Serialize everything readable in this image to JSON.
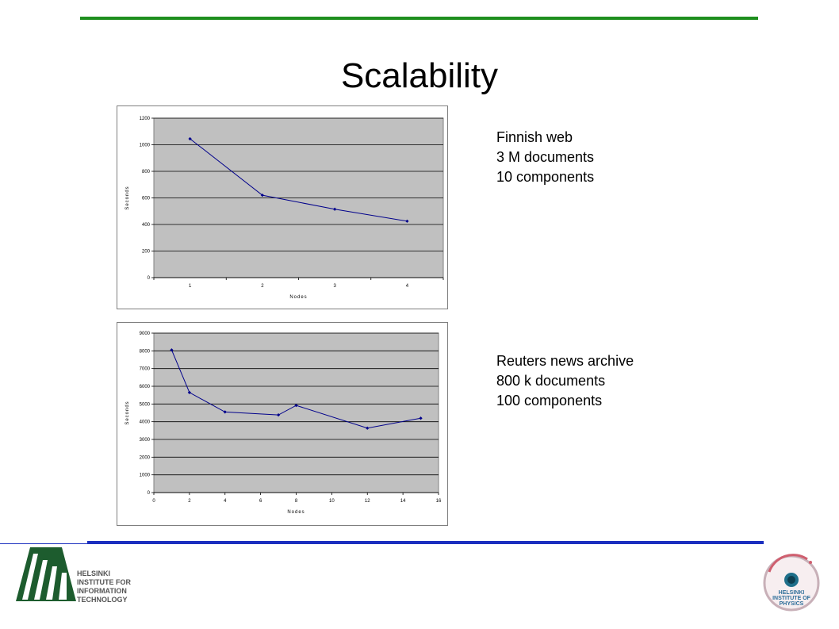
{
  "slide": {
    "title": "Scalability",
    "caption1": [
      "Finnish web",
      "3 M documents",
      "10 components"
    ],
    "caption2": [
      "Reuters news archive",
      "800 k documents",
      "100 components"
    ],
    "colors": {
      "top_rule": "#1e8f1e",
      "bottom_rule": "#1b2fbf",
      "plot_bg": "#c0c0c0",
      "series": "#00008b",
      "logo_green": "#1d5c2e"
    },
    "logos": [
      {
        "name": "hiit-logo",
        "text": [
          "HELSINKI",
          "INSTITUTE FOR",
          "INFORMATION",
          "TECHNOLOGY"
        ]
      },
      {
        "name": "hip-logo",
        "text": [
          "HELSINKI",
          "INSTITUTE OF",
          "PHYSICS"
        ]
      }
    ]
  },
  "chart_data": [
    {
      "type": "line",
      "xlabel": "Nodes",
      "ylabel": "Seconds",
      "x_kind": "category",
      "categories": [
        "1",
        "2",
        "3",
        "4"
      ],
      "y_ticks": [
        0,
        200,
        400,
        600,
        800,
        1000,
        1200
      ],
      "ylim": [
        0,
        1200
      ],
      "grid": true,
      "series": [
        {
          "values": [
            1045,
            620,
            515,
            425
          ]
        }
      ]
    },
    {
      "type": "line",
      "xlabel": "Nodes",
      "ylabel": "Seconds",
      "x_kind": "numeric",
      "x_ticks": [
        0,
        2,
        4,
        6,
        8,
        10,
        12,
        14,
        16
      ],
      "xlim": [
        0,
        16
      ],
      "y_ticks": [
        0,
        1000,
        2000,
        3000,
        4000,
        5000,
        6000,
        7000,
        8000,
        9000
      ],
      "ylim": [
        0,
        9000
      ],
      "grid": true,
      "series": [
        {
          "x": [
            1,
            2,
            4,
            7,
            8,
            12,
            15
          ],
          "values": [
            8050,
            5650,
            4550,
            4380,
            4920,
            3640,
            4200
          ]
        }
      ]
    }
  ]
}
